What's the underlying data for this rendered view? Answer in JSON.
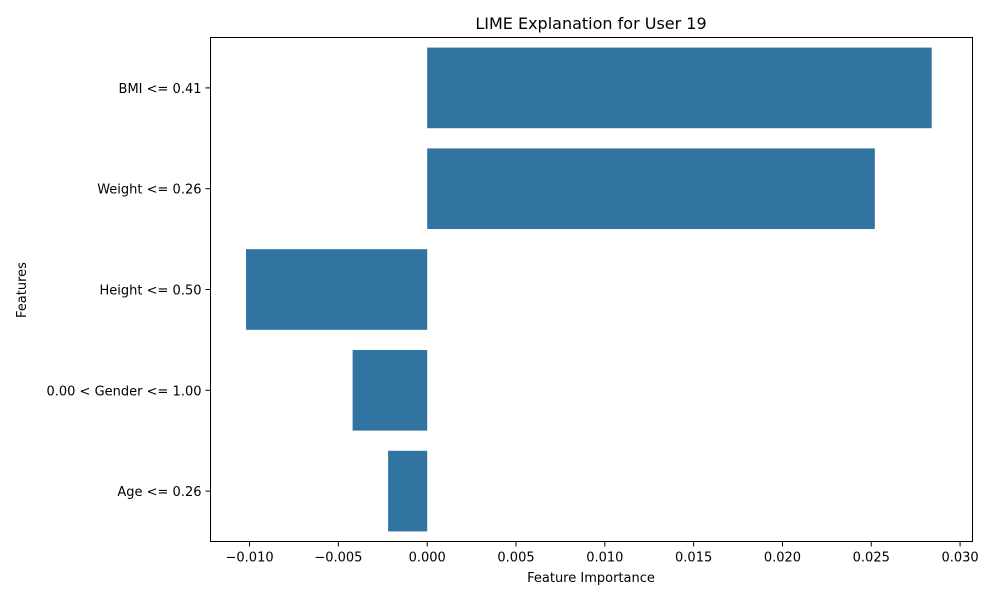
{
  "chart_data": {
    "type": "bar",
    "orientation": "horizontal",
    "title": "LIME Explanation for User 19",
    "xlabel": "Feature Importance",
    "ylabel": "Features",
    "categories": [
      "BMI <= 0.41",
      "Weight <= 0.26",
      "Height <= 0.50",
      "0.00 < Gender <= 1.00",
      "Age <= 0.26"
    ],
    "values": [
      0.0284,
      0.0252,
      -0.0102,
      -0.0042,
      -0.0022
    ],
    "xlim": [
      -0.0122,
      0.0307
    ],
    "xticks": [
      -0.01,
      -0.005,
      0.0,
      0.005,
      0.01,
      0.015,
      0.02,
      0.025,
      0.03
    ],
    "xtick_labels": [
      "−0.010",
      "−0.005",
      "0.000",
      "0.005",
      "0.010",
      "0.015",
      "0.020",
      "0.025",
      "0.030"
    ],
    "bar_color": "#3274a1",
    "grid": false,
    "legend": null
  }
}
